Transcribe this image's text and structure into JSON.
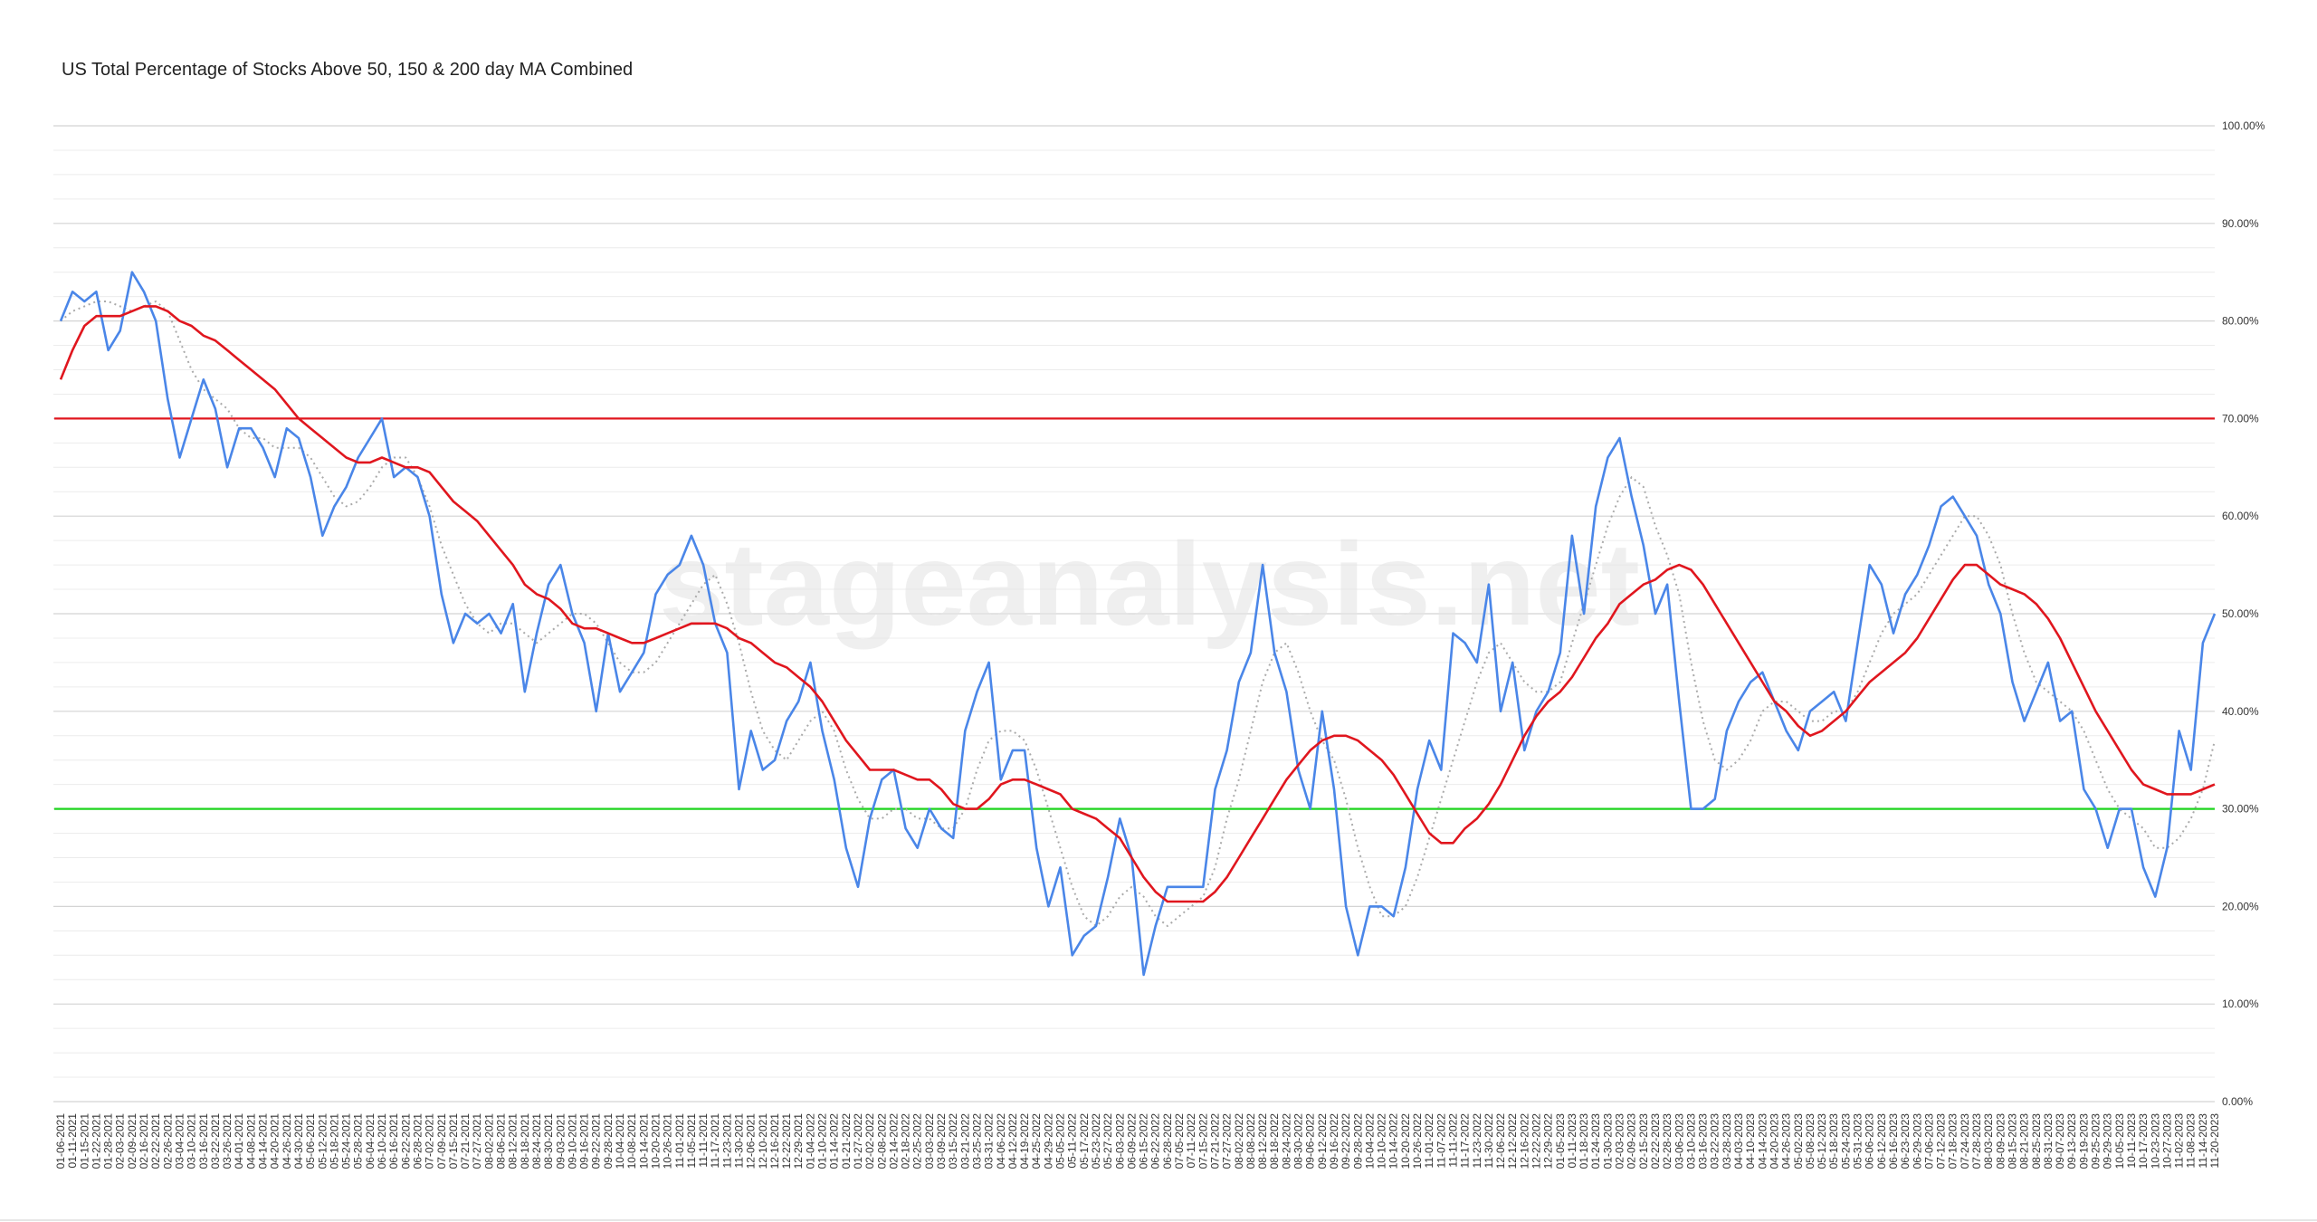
{
  "chart_data": {
    "type": "line",
    "title": "US Total Percentage of Stocks Above 50, 150 & 200 day MA Combined",
    "watermark": "stageanalysis.net",
    "categories": [
      "01-06-2021",
      "01-11-2021",
      "01-15-2021",
      "01-22-2021",
      "01-28-2021",
      "02-03-2021",
      "02-09-2021",
      "02-16-2021",
      "02-22-2021",
      "02-26-2021",
      "03-04-2021",
      "03-10-2021",
      "03-16-2021",
      "03-22-2021",
      "03-26-2021",
      "04-01-2021",
      "04-08-2021",
      "04-14-2021",
      "04-20-2021",
      "04-26-2021",
      "04-30-2021",
      "05-06-2021",
      "05-12-2021",
      "05-18-2021",
      "05-24-2021",
      "05-28-2021",
      "06-04-2021",
      "06-10-2021",
      "06-16-2021",
      "06-22-2021",
      "06-28-2021",
      "07-02-2021",
      "07-09-2021",
      "07-15-2021",
      "07-21-2021",
      "07-27-2021",
      "08-02-2021",
      "08-06-2021",
      "08-12-2021",
      "08-18-2021",
      "08-24-2021",
      "08-30-2021",
      "09-03-2021",
      "09-10-2021",
      "09-16-2021",
      "09-22-2021",
      "09-28-2021",
      "10-04-2021",
      "10-08-2021",
      "10-14-2021",
      "10-20-2021",
      "10-26-2021",
      "11-01-2021",
      "11-05-2021",
      "11-11-2021",
      "11-17-2021",
      "11-23-2021",
      "11-30-2021",
      "12-06-2021",
      "12-10-2021",
      "12-16-2021",
      "12-22-2021",
      "12-29-2021",
      "01-04-2022",
      "01-10-2022",
      "01-14-2022",
      "01-21-2022",
      "01-27-2022",
      "02-02-2022",
      "02-08-2022",
      "02-14-2022",
      "02-18-2022",
      "02-25-2022",
      "03-03-2022",
      "03-09-2022",
      "03-15-2022",
      "03-21-2022",
      "03-25-2022",
      "03-31-2022",
      "04-06-2022",
      "04-12-2022",
      "04-19-2022",
      "04-25-2022",
      "04-29-2022",
      "05-05-2022",
      "05-11-2022",
      "05-17-2022",
      "05-23-2022",
      "05-27-2022",
      "06-03-2022",
      "06-09-2022",
      "06-15-2022",
      "06-22-2022",
      "06-28-2022",
      "07-05-2022",
      "07-11-2022",
      "07-15-2022",
      "07-21-2022",
      "07-27-2022",
      "08-02-2022",
      "08-08-2022",
      "08-12-2022",
      "08-18-2022",
      "08-24-2022",
      "08-30-2022",
      "09-06-2022",
      "09-12-2022",
      "09-16-2022",
      "09-22-2022",
      "09-28-2022",
      "10-04-2022",
      "10-10-2022",
      "10-14-2022",
      "10-20-2022",
      "10-26-2022",
      "11-01-2022",
      "11-07-2022",
      "11-11-2022",
      "11-17-2022",
      "11-23-2022",
      "11-30-2022",
      "12-06-2022",
      "12-12-2022",
      "12-16-2022",
      "12-22-2022",
      "12-29-2022",
      "01-05-2023",
      "01-11-2023",
      "01-18-2023",
      "01-24-2023",
      "01-30-2023",
      "02-03-2023",
      "02-09-2023",
      "02-15-2023",
      "02-22-2023",
      "02-28-2023",
      "03-06-2023",
      "03-10-2023",
      "03-16-2023",
      "03-22-2023",
      "03-28-2023",
      "04-03-2023",
      "04-10-2023",
      "04-14-2023",
      "04-20-2023",
      "04-26-2023",
      "05-02-2023",
      "05-08-2023",
      "05-12-2023",
      "05-18-2023",
      "05-24-2023",
      "05-31-2023",
      "06-06-2023",
      "06-12-2023",
      "06-16-2023",
      "06-23-2023",
      "06-29-2023",
      "07-06-2023",
      "07-12-2023",
      "07-18-2023",
      "07-24-2023",
      "07-28-2023",
      "08-03-2023",
      "08-09-2023",
      "08-15-2023",
      "08-21-2023",
      "08-25-2023",
      "08-31-2023",
      "09-07-2023",
      "09-13-2023",
      "09-19-2023",
      "09-25-2023",
      "09-29-2023",
      "10-05-2023",
      "10-11-2023",
      "10-17-2023",
      "10-23-2023",
      "10-27-2023",
      "11-02-2023",
      "11-08-2023",
      "11-14-2023",
      "11-20-2023"
    ],
    "series": [
      {
        "color": "#aaaaaa",
        "style": "dotted",
        "values": [
          80,
          81,
          81.5,
          82,
          82,
          81.5,
          81,
          81.5,
          82,
          81,
          78,
          75,
          73,
          72,
          71,
          69,
          68,
          68,
          67,
          67,
          67,
          66,
          64,
          62,
          61,
          61.5,
          63,
          65,
          66,
          66,
          64,
          61,
          57,
          54,
          51,
          49,
          48,
          49,
          49,
          48,
          47,
          48,
          49,
          50,
          50,
          49,
          47,
          45,
          44,
          44,
          45,
          47,
          49,
          51,
          53,
          54,
          51,
          47,
          42,
          38,
          36,
          35,
          37,
          39,
          40,
          38,
          34,
          31,
          29,
          29,
          30,
          30,
          29,
          29,
          28,
          28,
          30,
          34,
          37,
          38,
          38,
          37,
          34,
          30,
          26,
          22,
          19,
          18,
          19,
          21,
          22,
          21,
          19,
          18,
          19,
          20,
          21,
          24,
          29,
          33,
          38,
          43,
          46,
          47,
          44,
          40,
          37,
          35,
          31,
          26,
          22,
          19,
          19,
          20,
          23,
          27,
          31,
          35,
          39,
          43,
          46,
          47,
          45,
          43,
          42,
          42,
          43,
          47,
          51,
          55,
          59,
          62,
          64,
          63,
          59,
          56,
          52,
          45,
          39,
          35,
          34,
          35,
          37,
          40,
          41,
          41,
          40,
          39,
          39,
          40,
          40,
          42,
          45,
          48,
          50,
          51,
          52,
          54,
          56,
          58,
          60,
          60,
          58,
          55,
          50,
          46,
          43,
          42,
          41,
          40,
          38,
          35,
          32,
          30,
          29,
          28,
          26,
          26,
          27,
          29,
          32,
          37
        ]
      },
      {
        "color": "#4a86e8",
        "style": "solid",
        "values": [
          80,
          83,
          82,
          83,
          77,
          79,
          85,
          83,
          80,
          72,
          66,
          70,
          74,
          71,
          65,
          69,
          69,
          67,
          64,
          69,
          68,
          64,
          58,
          61,
          63,
          66,
          68,
          70,
          64,
          65,
          64,
          60,
          52,
          47,
          50,
          49,
          50,
          48,
          51,
          42,
          48,
          53,
          55,
          50,
          47,
          40,
          48,
          42,
          44,
          46,
          52,
          54,
          55,
          58,
          55,
          49,
          46,
          32,
          38,
          34,
          35,
          39,
          41,
          45,
          38,
          33,
          26,
          22,
          29,
          33,
          34,
          28,
          26,
          30,
          28,
          27,
          38,
          42,
          45,
          33,
          36,
          36,
          26,
          20,
          24,
          15,
          17,
          18,
          23,
          29,
          25,
          13,
          18,
          22,
          22,
          22,
          22,
          32,
          36,
          43,
          46,
          55,
          46,
          42,
          34,
          30,
          40,
          32,
          20,
          15,
          20,
          20,
          19,
          24,
          32,
          37,
          34,
          48,
          47,
          45,
          53,
          40,
          45,
          36,
          40,
          42,
          46,
          58,
          50,
          61,
          66,
          68,
          62,
          57,
          50,
          53,
          41,
          30,
          30,
          31,
          38,
          41,
          43,
          44,
          41,
          38,
          36,
          40,
          41,
          42,
          39,
          47,
          55,
          53,
          48,
          52,
          54,
          57,
          61,
          62,
          60,
          58,
          53,
          50,
          43,
          39,
          42,
          45,
          39,
          40,
          32,
          30,
          26,
          30,
          30,
          24,
          21,
          26,
          38,
          34,
          47,
          50
        ]
      },
      {
        "color": "#e0161e",
        "style": "solid",
        "values": [
          74,
          77,
          79.5,
          80.5,
          80.5,
          80.5,
          81,
          81.5,
          81.5,
          81,
          80,
          79.5,
          78.5,
          78,
          77,
          76,
          75,
          74,
          73,
          71.5,
          70,
          69,
          68,
          67,
          66,
          65.5,
          65.5,
          66,
          65.5,
          65,
          65,
          64.5,
          63,
          61.5,
          60.5,
          59.5,
          58,
          56.5,
          55,
          53,
          52,
          51.5,
          50.5,
          49,
          48.5,
          48.5,
          48,
          47.5,
          47,
          47,
          47.5,
          48,
          48.5,
          49,
          49,
          49,
          48.5,
          47.5,
          47,
          46,
          45,
          44.5,
          43.5,
          42.5,
          41,
          39,
          37,
          35.5,
          34,
          34,
          34,
          33.5,
          33,
          33,
          32,
          30.5,
          30,
          30,
          31,
          32.5,
          33,
          33,
          32.5,
          32,
          31.5,
          30,
          29.5,
          29,
          28,
          27,
          25,
          23,
          21.5,
          20.5,
          20.5,
          20.5,
          20.5,
          21.5,
          23,
          25,
          27,
          29,
          31,
          33,
          34.5,
          36,
          37,
          37.5,
          37.5,
          37,
          36,
          35,
          33.5,
          31.5,
          29.5,
          27.5,
          26.5,
          26.5,
          28,
          29,
          30.5,
          32.5,
          35,
          37.5,
          39.5,
          41,
          42,
          43.5,
          45.5,
          47.5,
          49,
          51,
          52,
          53,
          53.5,
          54.5,
          55,
          54.5,
          53,
          51,
          49,
          47,
          45,
          43,
          41,
          40,
          38.5,
          37.5,
          38,
          39,
          40,
          41.5,
          43,
          44,
          45,
          46,
          47.5,
          49.5,
          51.5,
          53.5,
          55,
          55,
          54,
          53,
          52.5,
          52,
          51,
          49.5,
          47.5,
          45,
          42.5,
          40,
          38,
          36,
          34,
          32.5,
          32,
          31.5,
          31.5,
          31.5,
          32,
          32.5
        ]
      }
    ],
    "hlines": [
      {
        "value": 70,
        "color": "#e0161e"
      },
      {
        "value": 30,
        "color": "#1ed41e"
      }
    ],
    "ylim": [
      0,
      100
    ],
    "yticks": [
      {
        "value": 0,
        "label": "0.00%"
      },
      {
        "value": 10,
        "label": "10.00%"
      },
      {
        "value": 20,
        "label": "20.00%"
      },
      {
        "value": 30,
        "label": "30.00%"
      },
      {
        "value": 40,
        "label": "40.00%"
      },
      {
        "value": 50,
        "label": "50.00%"
      },
      {
        "value": 60,
        "label": "60.00%"
      },
      {
        "value": 70,
        "label": "70.00%"
      },
      {
        "value": 80,
        "label": "80.00%"
      },
      {
        "value": 90,
        "label": "90.00%"
      },
      {
        "value": 100,
        "label": "100.00%"
      }
    ],
    "minor_divisions": 4,
    "grid": true
  }
}
